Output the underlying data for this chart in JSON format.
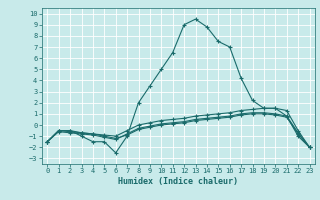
{
  "xlabel": "Humidex (Indice chaleur)",
  "background_color": "#c8eaea",
  "grid_color": "#ffffff",
  "line_color": "#1a6b6b",
  "xlim": [
    -0.5,
    23.5
  ],
  "ylim": [
    -3.5,
    10.5
  ],
  "xticks": [
    0,
    1,
    2,
    3,
    4,
    5,
    6,
    7,
    8,
    9,
    10,
    11,
    12,
    13,
    14,
    15,
    16,
    17,
    18,
    19,
    20,
    21,
    22,
    23
  ],
  "yticks": [
    -3,
    -2,
    -1,
    0,
    1,
    2,
    3,
    4,
    5,
    6,
    7,
    8,
    9,
    10
  ],
  "series": [
    {
      "x": [
        0,
        1,
        2,
        3,
        4,
        5,
        6,
        7,
        8,
        9,
        10,
        11,
        12,
        13,
        14,
        15,
        16,
        17,
        18,
        19,
        20,
        21,
        22,
        23
      ],
      "y": [
        -1.5,
        -0.5,
        -0.5,
        -1.0,
        -1.5,
        -1.5,
        -2.5,
        -1.0,
        2.0,
        3.5,
        5.0,
        6.5,
        9.0,
        9.5,
        8.8,
        7.5,
        7.0,
        4.2,
        2.2,
        1.5,
        1.5,
        0.8,
        -1.0,
        -2.0
      ]
    },
    {
      "x": [
        0,
        1,
        2,
        3,
        4,
        5,
        6,
        7,
        8,
        9,
        10,
        11,
        12,
        13,
        14,
        15,
        16,
        17,
        18,
        19,
        20,
        21,
        22,
        23
      ],
      "y": [
        -1.5,
        -0.5,
        -0.5,
        -0.7,
        -0.8,
        -0.9,
        -1.0,
        -0.5,
        0.0,
        0.2,
        0.4,
        0.5,
        0.6,
        0.8,
        0.9,
        1.0,
        1.1,
        1.3,
        1.4,
        1.5,
        1.5,
        1.3,
        -0.5,
        -2.0
      ]
    },
    {
      "x": [
        0,
        1,
        2,
        3,
        4,
        5,
        6,
        7,
        8,
        9,
        10,
        11,
        12,
        13,
        14,
        15,
        16,
        17,
        18,
        19,
        20,
        21,
        22,
        23
      ],
      "y": [
        -1.5,
        -0.5,
        -0.6,
        -0.7,
        -0.8,
        -1.0,
        -1.2,
        -0.9,
        -0.4,
        -0.2,
        0.0,
        0.1,
        0.2,
        0.4,
        0.5,
        0.6,
        0.7,
        0.9,
        1.0,
        1.0,
        0.9,
        0.7,
        -0.8,
        -2.0
      ]
    },
    {
      "x": [
        0,
        1,
        2,
        3,
        4,
        5,
        6,
        7,
        8,
        9,
        10,
        11,
        12,
        13,
        14,
        15,
        16,
        17,
        18,
        19,
        20,
        21,
        22,
        23
      ],
      "y": [
        -1.5,
        -0.6,
        -0.7,
        -0.8,
        -0.9,
        -1.1,
        -1.3,
        -0.8,
        -0.3,
        -0.1,
        0.1,
        0.2,
        0.3,
        0.5,
        0.6,
        0.7,
        0.8,
        1.0,
        1.1,
        1.1,
        1.0,
        0.8,
        -0.7,
        -2.0
      ]
    }
  ]
}
